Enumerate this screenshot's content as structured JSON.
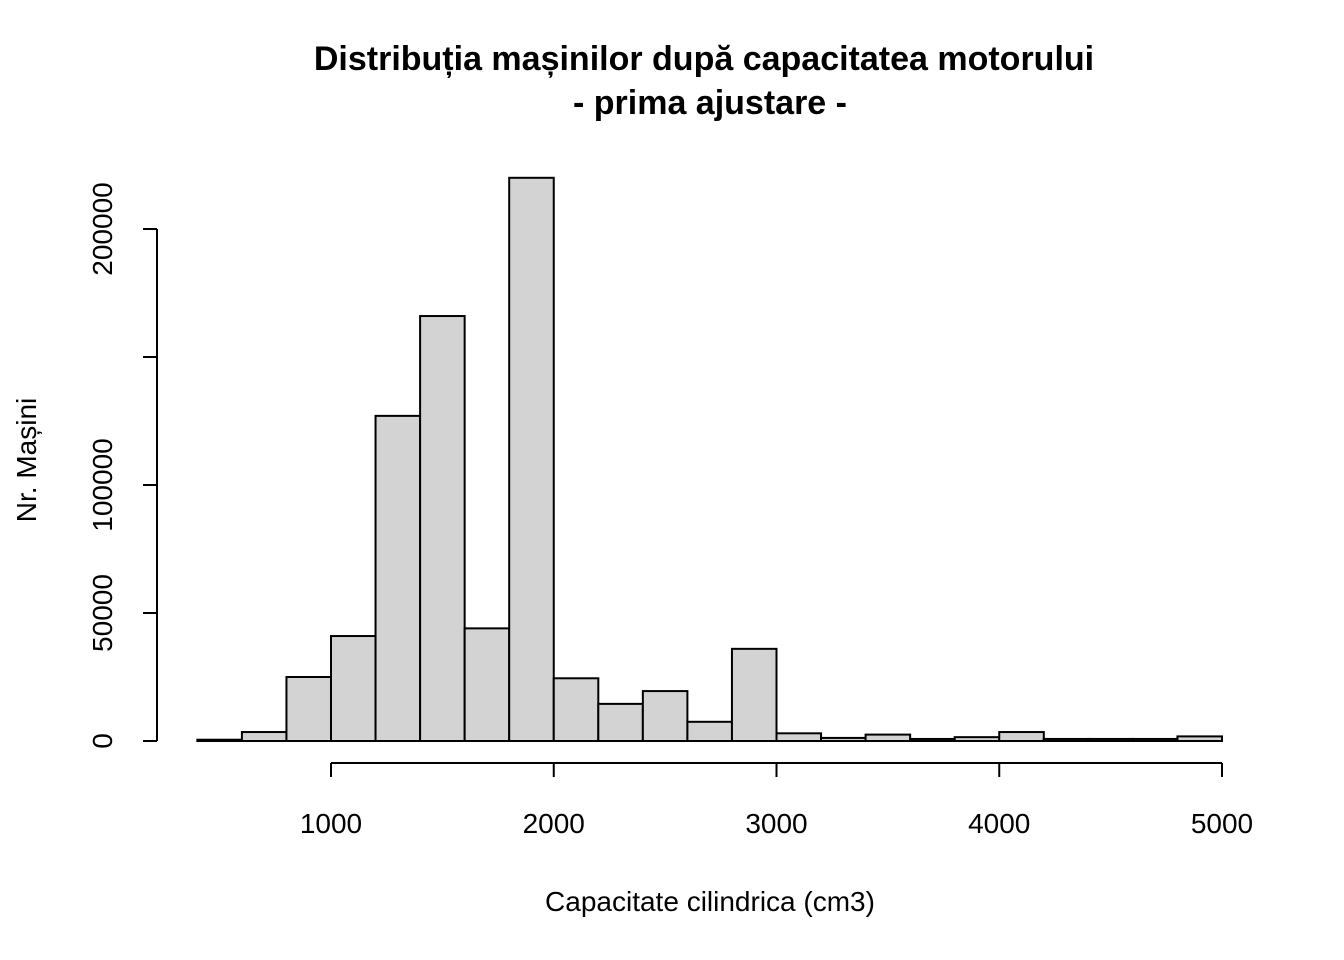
{
  "chart_data": {
    "type": "bar",
    "title_line1": "Distribuția mașinilor după capacitatea motorului",
    "title_line2": "- prima ajustare -",
    "xlabel": "Capacitate cilindrica (cm3)",
    "ylabel": "Nr. Mașini",
    "xlim": [
      400,
      5000
    ],
    "ylim": [
      0,
      220000
    ],
    "x_ticks": [
      1000,
      2000,
      3000,
      4000,
      5000
    ],
    "y_ticks": [
      0,
      50000,
      100000,
      150000,
      200000
    ],
    "y_tick_labels": [
      "0",
      "50000",
      "100000",
      "",
      "200000"
    ],
    "bin_width": 200,
    "bins": [
      {
        "start": 400,
        "end": 600,
        "value": 500
      },
      {
        "start": 600,
        "end": 800,
        "value": 3500
      },
      {
        "start": 800,
        "end": 1000,
        "value": 25000
      },
      {
        "start": 1000,
        "end": 1200,
        "value": 41000
      },
      {
        "start": 1200,
        "end": 1400,
        "value": 127000
      },
      {
        "start": 1400,
        "end": 1600,
        "value": 166000
      },
      {
        "start": 1600,
        "end": 1800,
        "value": 44000
      },
      {
        "start": 1800,
        "end": 2000,
        "value": 220000
      },
      {
        "start": 2000,
        "end": 2200,
        "value": 24500
      },
      {
        "start": 2200,
        "end": 2400,
        "value": 14500
      },
      {
        "start": 2400,
        "end": 2600,
        "value": 19500
      },
      {
        "start": 2600,
        "end": 2800,
        "value": 7500
      },
      {
        "start": 2800,
        "end": 3000,
        "value": 36000
      },
      {
        "start": 3000,
        "end": 3200,
        "value": 3000
      },
      {
        "start": 3200,
        "end": 3400,
        "value": 1200
      },
      {
        "start": 3400,
        "end": 3600,
        "value": 2500
      },
      {
        "start": 3600,
        "end": 3800,
        "value": 800
      },
      {
        "start": 3800,
        "end": 4000,
        "value": 1500
      },
      {
        "start": 4000,
        "end": 4200,
        "value": 3500
      },
      {
        "start": 4200,
        "end": 4400,
        "value": 800
      },
      {
        "start": 4400,
        "end": 4600,
        "value": 800
      },
      {
        "start": 4600,
        "end": 4800,
        "value": 800
      },
      {
        "start": 4800,
        "end": 5000,
        "value": 1800
      }
    ]
  }
}
